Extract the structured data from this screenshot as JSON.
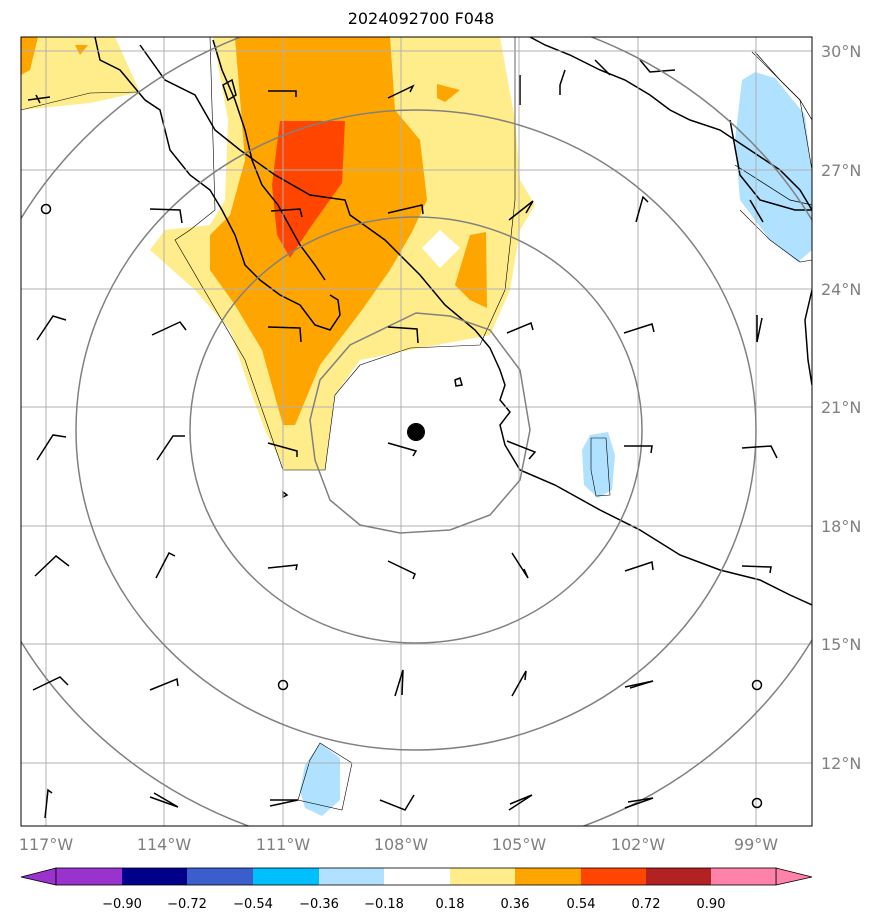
{
  "title": "2024092700 F048",
  "lon_labels": [
    "117°W",
    "114°W",
    "111°W",
    "108°W",
    "105°W",
    "102°W",
    "99°W"
  ],
  "lat_labels": [
    "30°N",
    "27°N",
    "24°N",
    "21°N",
    "18°N",
    "15°N",
    "12°N"
  ],
  "colorbar": {
    "colors": [
      "#9a32cd",
      "#00008b",
      "#3a5fcd",
      "#00bfff",
      "#b0e2ff",
      "#ffffff",
      "#ffec8b",
      "#ffa500",
      "#ff4500",
      "#b22222",
      "#ff82ab"
    ],
    "ticks": [
      "−0.90",
      "−0.72",
      "−0.54",
      "−0.36",
      "−0.18",
      "0.18",
      "0.36",
      "0.54",
      "0.72",
      "0.90"
    ]
  },
  "center_marker": {
    "lon": -107.6,
    "lat": 20.4
  },
  "range_rings_deg": [
    3,
    6,
    9,
    12
  ]
}
